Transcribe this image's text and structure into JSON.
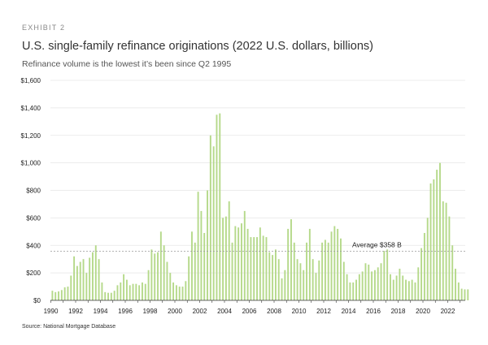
{
  "exhibit_label": "EXHIBIT 2",
  "chart_data": {
    "type": "bar",
    "title": "U.S. single-family refinance originations (2022 U.S. dollars, billions)",
    "subtitle": "Refinance volume is the lowest it’s been since Q2 1995",
    "xlabel": "",
    "ylabel": "",
    "ylim": [
      0,
      1600
    ],
    "y_ticks": [
      0,
      200,
      400,
      600,
      800,
      1000,
      1200,
      1400,
      1600
    ],
    "y_tick_labels": [
      "$0",
      "$200",
      "$400",
      "$600",
      "$800",
      "$1,000",
      "$1,200",
      "$1,400",
      "$1,600"
    ],
    "x_tick_labels": [
      "1990",
      "1992",
      "1994",
      "1996",
      "1998",
      "2000",
      "2002",
      "2004",
      "2006",
      "2008",
      "2010",
      "2012",
      "2014",
      "2016",
      "2018",
      "2020",
      "2022"
    ],
    "x_tick_years": [
      1990,
      1992,
      1994,
      1996,
      1998,
      2000,
      2002,
      2004,
      2006,
      2008,
      2010,
      2012,
      2014,
      2016,
      2018,
      2020,
      2022
    ],
    "start_year": 1990,
    "periods_per_year": 4,
    "series": [
      {
        "name": "Refinance originations",
        "color": "#b5d98a",
        "values": [
          70,
          60,
          65,
          75,
          95,
          100,
          180,
          320,
          250,
          280,
          300,
          200,
          310,
          350,
          400,
          300,
          130,
          60,
          55,
          55,
          70,
          110,
          130,
          190,
          150,
          110,
          120,
          120,
          110,
          130,
          120,
          220,
          370,
          340,
          350,
          500,
          400,
          280,
          200,
          130,
          110,
          100,
          100,
          140,
          320,
          500,
          420,
          790,
          650,
          490,
          800,
          1200,
          1120,
          1350,
          1360,
          600,
          610,
          720,
          420,
          540,
          530,
          560,
          650,
          520,
          460,
          460,
          460,
          530,
          470,
          460,
          350,
          330,
          370,
          300,
          160,
          220,
          520,
          590,
          420,
          300,
          270,
          220,
          420,
          520,
          300,
          200,
          290,
          420,
          440,
          420,
          500,
          540,
          520,
          450,
          280,
          190,
          130,
          130,
          150,
          190,
          210,
          270,
          260,
          210,
          220,
          240,
          270,
          360,
          370,
          190,
          150,
          180,
          230,
          180,
          150,
          140,
          150,
          130,
          240,
          380,
          490,
          600,
          850,
          880,
          950,
          1000,
          720,
          710,
          610,
          400,
          230,
          130,
          85,
          80,
          80
        ]
      }
    ],
    "average": 358,
    "average_label": "Average $358 B",
    "source": "Source: National Mortgage Database"
  }
}
